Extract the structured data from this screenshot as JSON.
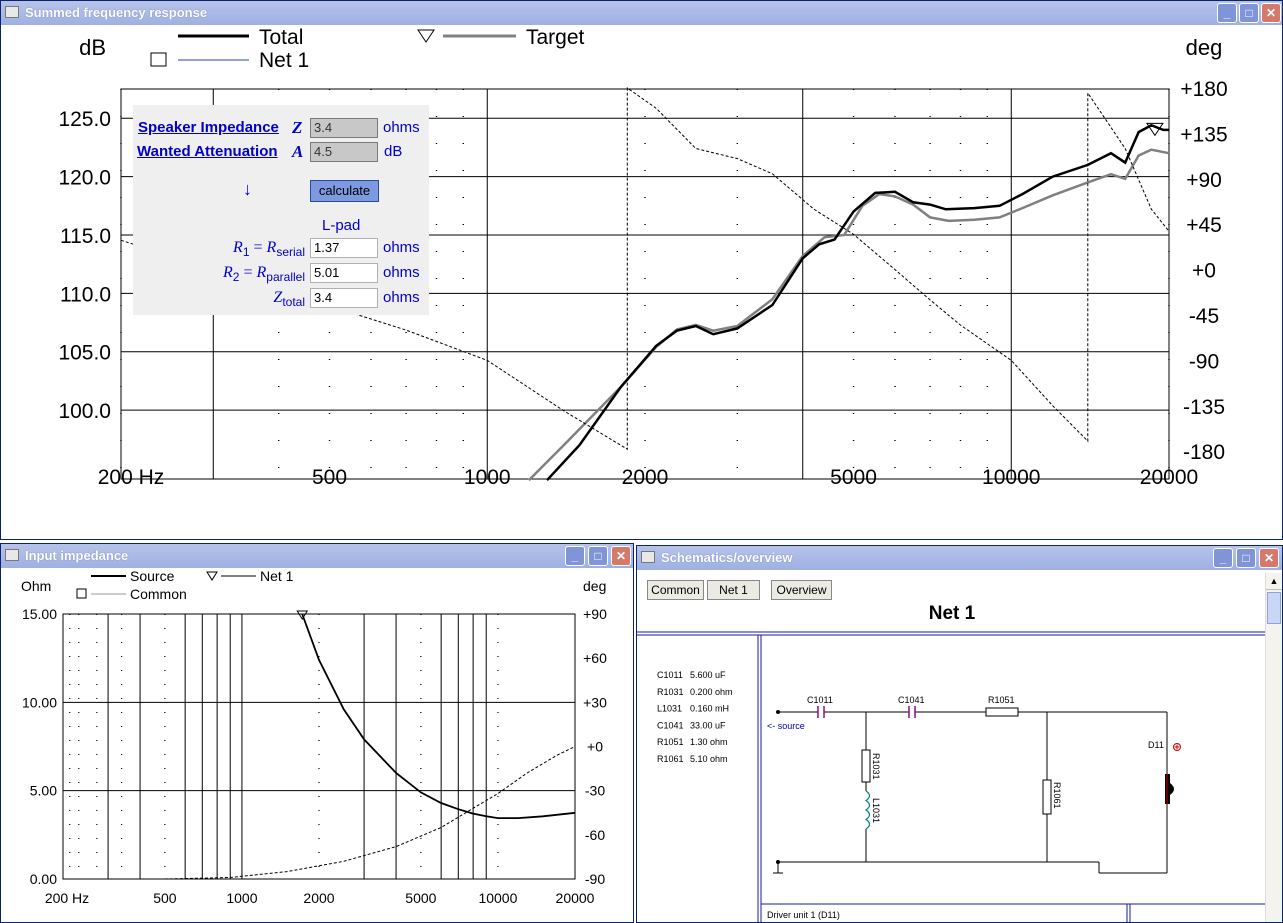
{
  "top": {
    "title": "Summed frequency response",
    "y_unit": "dB",
    "y2_unit": "deg",
    "legend": {
      "total": "Total",
      "net1": "Net 1",
      "target": "Target"
    },
    "ytick_labels": [
      "125.0",
      "120.0",
      "115.0",
      "110.0",
      "105.0",
      "100.0"
    ],
    "y2tick_labels": [
      "+180",
      "+135",
      "+90",
      "+45",
      "+0",
      "-45",
      "-90",
      "-135",
      "-180"
    ],
    "xtick_labels": [
      "200 Hz",
      "500",
      "1000",
      "2000",
      "5000",
      "10000",
      "20000"
    ]
  },
  "lpad": {
    "impedance_label": "Speaker Impedance",
    "impedance_symbol": "Z",
    "impedance_value": "3.4",
    "impedance_unit": "ohms",
    "atten_label": "Wanted Attenuation",
    "atten_symbol": "A",
    "atten_value": "4.5",
    "atten_unit": "dB",
    "arrow": "↓",
    "calculate_label": "calculate",
    "section_title": "L-pad",
    "r1_value": "1.37",
    "r2_value": "5.01",
    "ztotal_value": "3.4",
    "ohms": "ohms"
  },
  "impedance": {
    "title": "Input impedance",
    "y_unit": "Ohm",
    "y2_unit": "deg",
    "legend": {
      "source": "Source",
      "net1": "Net 1",
      "common": "Common"
    },
    "ytick_labels": [
      "15.00",
      "10.00",
      "5.00",
      "0.00"
    ],
    "y2tick_labels": [
      "+90",
      "+60",
      "+30",
      "+0",
      "-30",
      "-60",
      "-90"
    ],
    "xtick_labels": [
      "200 Hz",
      "500",
      "1000",
      "2000",
      "5000",
      "10000",
      "20000"
    ]
  },
  "schematic": {
    "title": "Schematics/overview",
    "buttons": [
      "Common",
      "Net 1",
      "Overview"
    ],
    "heading": "Net 1",
    "parts": [
      [
        "C1011",
        "5.600 uF"
      ],
      [
        "R1031",
        "0.200 ohm"
      ],
      [
        "L1031",
        "0.160 mH"
      ],
      [
        "C1041",
        "33.00 uF"
      ],
      [
        "R1051",
        "1.30 ohm"
      ],
      [
        "R1061",
        "5.10 ohm"
      ]
    ],
    "labels": {
      "c1011": "C1011",
      "c1041": "C1041",
      "r1051": "R1051",
      "r1031": "R1031",
      "l1031": "L1031",
      "r1061": "R1061",
      "d11": "D11",
      "source": "<- source"
    },
    "footer": "Driver unit 1 (D11)"
  },
  "colors": {
    "titlebar": "#a3b3e4",
    "link": "#0000cc",
    "curve_gray": "#808080"
  }
}
